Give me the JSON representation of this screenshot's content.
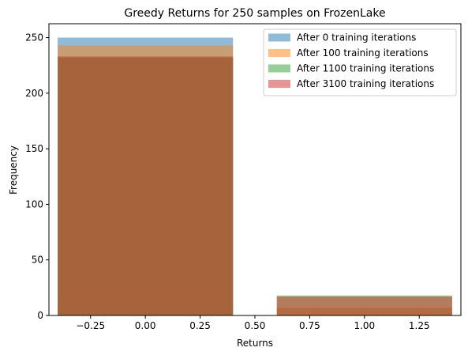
{
  "chart_data": {
    "type": "bar",
    "title": "Greedy Returns for 250 samples on FrozenLake",
    "xlabel": "Returns",
    "ylabel": "Frequency",
    "xlim": [
      -0.44,
      1.44
    ],
    "ylim": [
      0,
      262.5
    ],
    "xticks": [
      -0.25,
      0.0,
      0.25,
      0.5,
      0.75,
      1.0,
      1.25
    ],
    "xtick_labels": [
      "−0.25",
      "0.00",
      "0.25",
      "0.50",
      "0.75",
      "1.00",
      "1.25"
    ],
    "yticks": [
      0,
      50,
      100,
      150,
      200,
      250
    ],
    "ytick_labels": [
      "0",
      "50",
      "100",
      "150",
      "200",
      "250"
    ],
    "bar_x": [
      0.0,
      1.0
    ],
    "bar_width": 0.8,
    "series": [
      {
        "name": "After 0 training iterations",
        "color": "#1f77b4",
        "values": [
          250,
          0
        ]
      },
      {
        "name": "After 100 training iterations",
        "color": "#ff7f0e",
        "values": [
          243,
          7
        ]
      },
      {
        "name": "After 1100 training iterations",
        "color": "#2ca02c",
        "values": [
          232,
          18
        ]
      },
      {
        "name": "After 3100 training iterations",
        "color": "#d62728",
        "values": [
          233,
          17
        ]
      }
    ],
    "alpha": 0.5,
    "legend_position": "top-right",
    "grid": false
  }
}
